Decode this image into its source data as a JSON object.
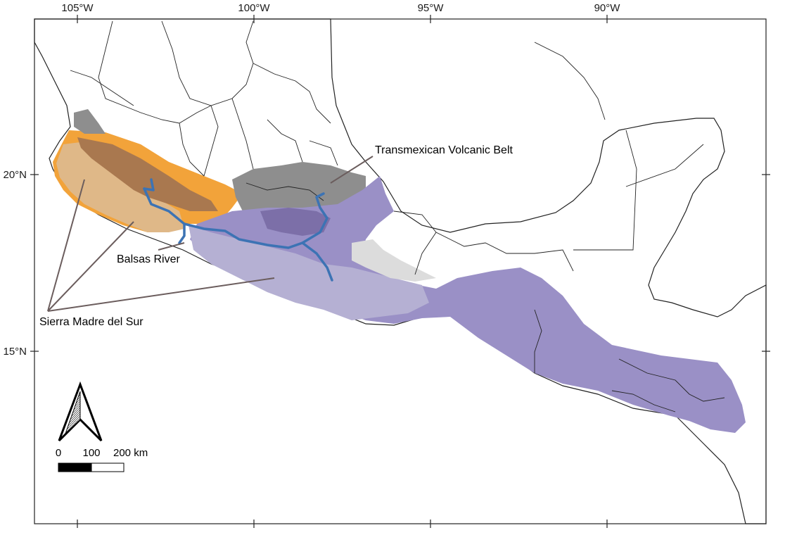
{
  "map": {
    "longitude_ticks": [
      "105°W",
      "100°W",
      "95°W",
      "90°W"
    ],
    "latitude_ticks": [
      "20°N",
      "15°N"
    ],
    "labels": {
      "tmvb": "Transmexican Volcanic Belt",
      "balsas": "Balsas River",
      "sierra": "Sierra Madre del Sur"
    },
    "scale_bar": {
      "values": [
        "0",
        "100",
        "200 km"
      ]
    },
    "colors": {
      "orange_region": "#f2a33a",
      "orange_light": "#dfb888",
      "orange_dark": "#a9784f",
      "purple_region": "#9a90c6",
      "purple_light": "#b5b0d3",
      "purple_dark": "#7c6fa8",
      "gray_region": "#8e8e8e",
      "light_gray": "#dcdcdc",
      "river": "#3c73b4",
      "annotation_line": "#6b5d5d"
    },
    "icons": [
      "north-arrow-icon"
    ]
  }
}
